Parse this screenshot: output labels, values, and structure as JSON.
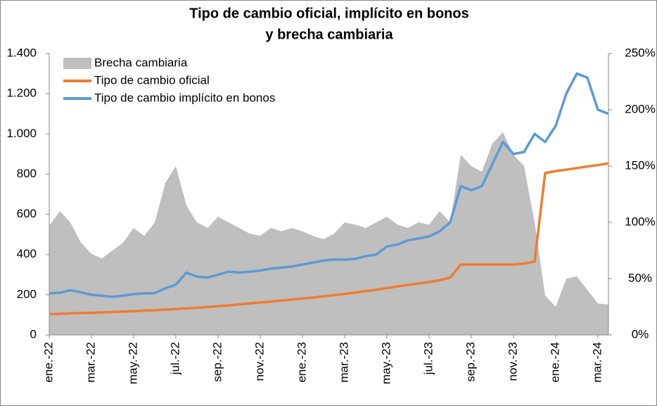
{
  "chart_data": {
    "type": "line",
    "title": [
      "Tipo de cambio oficial, implícito en bonos",
      "y brecha cambiaria"
    ],
    "categories": [
      "ene.-22",
      null,
      null,
      null,
      "mar.-22",
      null,
      null,
      null,
      "may.-22",
      null,
      null,
      null,
      "jul.-22",
      null,
      null,
      null,
      "sep.-22",
      null,
      null,
      null,
      "nov.-22",
      null,
      null,
      null,
      "ene.-23",
      null,
      null,
      null,
      "mar.-23",
      null,
      null,
      null,
      "may.-23",
      null,
      null,
      null,
      "jul.-23",
      null,
      null,
      null,
      "sep.-23",
      null,
      null,
      null,
      "nov.-23",
      null,
      null,
      null,
      "ene.-24",
      null,
      null,
      null,
      "mar.-24",
      null
    ],
    "series": [
      {
        "name": "Brecha cambiaria",
        "kind": "area",
        "axis": "y2",
        "color": "#bfbfbf",
        "values": [
          97,
          110,
          100,
          82,
          72,
          68,
          75,
          82,
          95,
          88,
          100,
          135,
          150,
          115,
          100,
          95,
          105,
          100,
          95,
          90,
          88,
          95,
          92,
          95,
          92,
          88,
          85,
          90,
          100,
          98,
          95,
          100,
          105,
          98,
          95,
          100,
          98,
          110,
          100,
          160,
          150,
          145,
          170,
          180,
          160,
          150,
          100,
          35,
          25,
          50,
          52,
          40,
          28,
          27
        ]
      },
      {
        "name": "Tipo de cambio oficial",
        "kind": "line",
        "color": "#ed7d31",
        "values": [
          103,
          105,
          107,
          109,
          110,
          112,
          114,
          116,
          118,
          121,
          123,
          126,
          129,
          132,
          135,
          139,
          143,
          147,
          152,
          157,
          161,
          166,
          171,
          176,
          181,
          186,
          192,
          198,
          204,
          211,
          218,
          225,
          233,
          241,
          249,
          256,
          263,
          272,
          285,
          350,
          350,
          350,
          350,
          350,
          350,
          355,
          365,
          805,
          815,
          822,
          830,
          838,
          845,
          853
        ]
      },
      {
        "name": "Tipo de cambio implícito en bonos",
        "kind": "line",
        "color": "#5b9bd5",
        "values": [
          207,
          210,
          222,
          212,
          200,
          195,
          190,
          195,
          203,
          207,
          208,
          232,
          250,
          310,
          290,
          285,
          300,
          315,
          310,
          315,
          320,
          330,
          335,
          340,
          350,
          360,
          370,
          375,
          375,
          378,
          392,
          400,
          440,
          450,
          470,
          480,
          490,
          515,
          560,
          740,
          720,
          740,
          850,
          960,
          900,
          910,
          1000,
          960,
          1040,
          1200,
          1300,
          1280,
          1120,
          1100
        ]
      }
    ],
    "ylim": [
      0,
      1400
    ],
    "yticks": [
      0,
      200,
      400,
      600,
      800,
      {
        "value": 1000,
        "label": "1.000"
      },
      {
        "value": 1200,
        "label": "1.200"
      },
      {
        "value": 1400,
        "label": "1.400"
      }
    ],
    "y2lim": [
      0,
      250
    ],
    "y2ticks": [
      {
        "value": 0,
        "label": "0%"
      },
      {
        "value": 50,
        "label": "50%"
      },
      {
        "value": 100,
        "label": "100%"
      },
      {
        "value": 150,
        "label": "150%"
      },
      {
        "value": 200,
        "label": "200%"
      },
      {
        "value": 250,
        "label": "250%"
      }
    ],
    "legend": "top-left"
  }
}
